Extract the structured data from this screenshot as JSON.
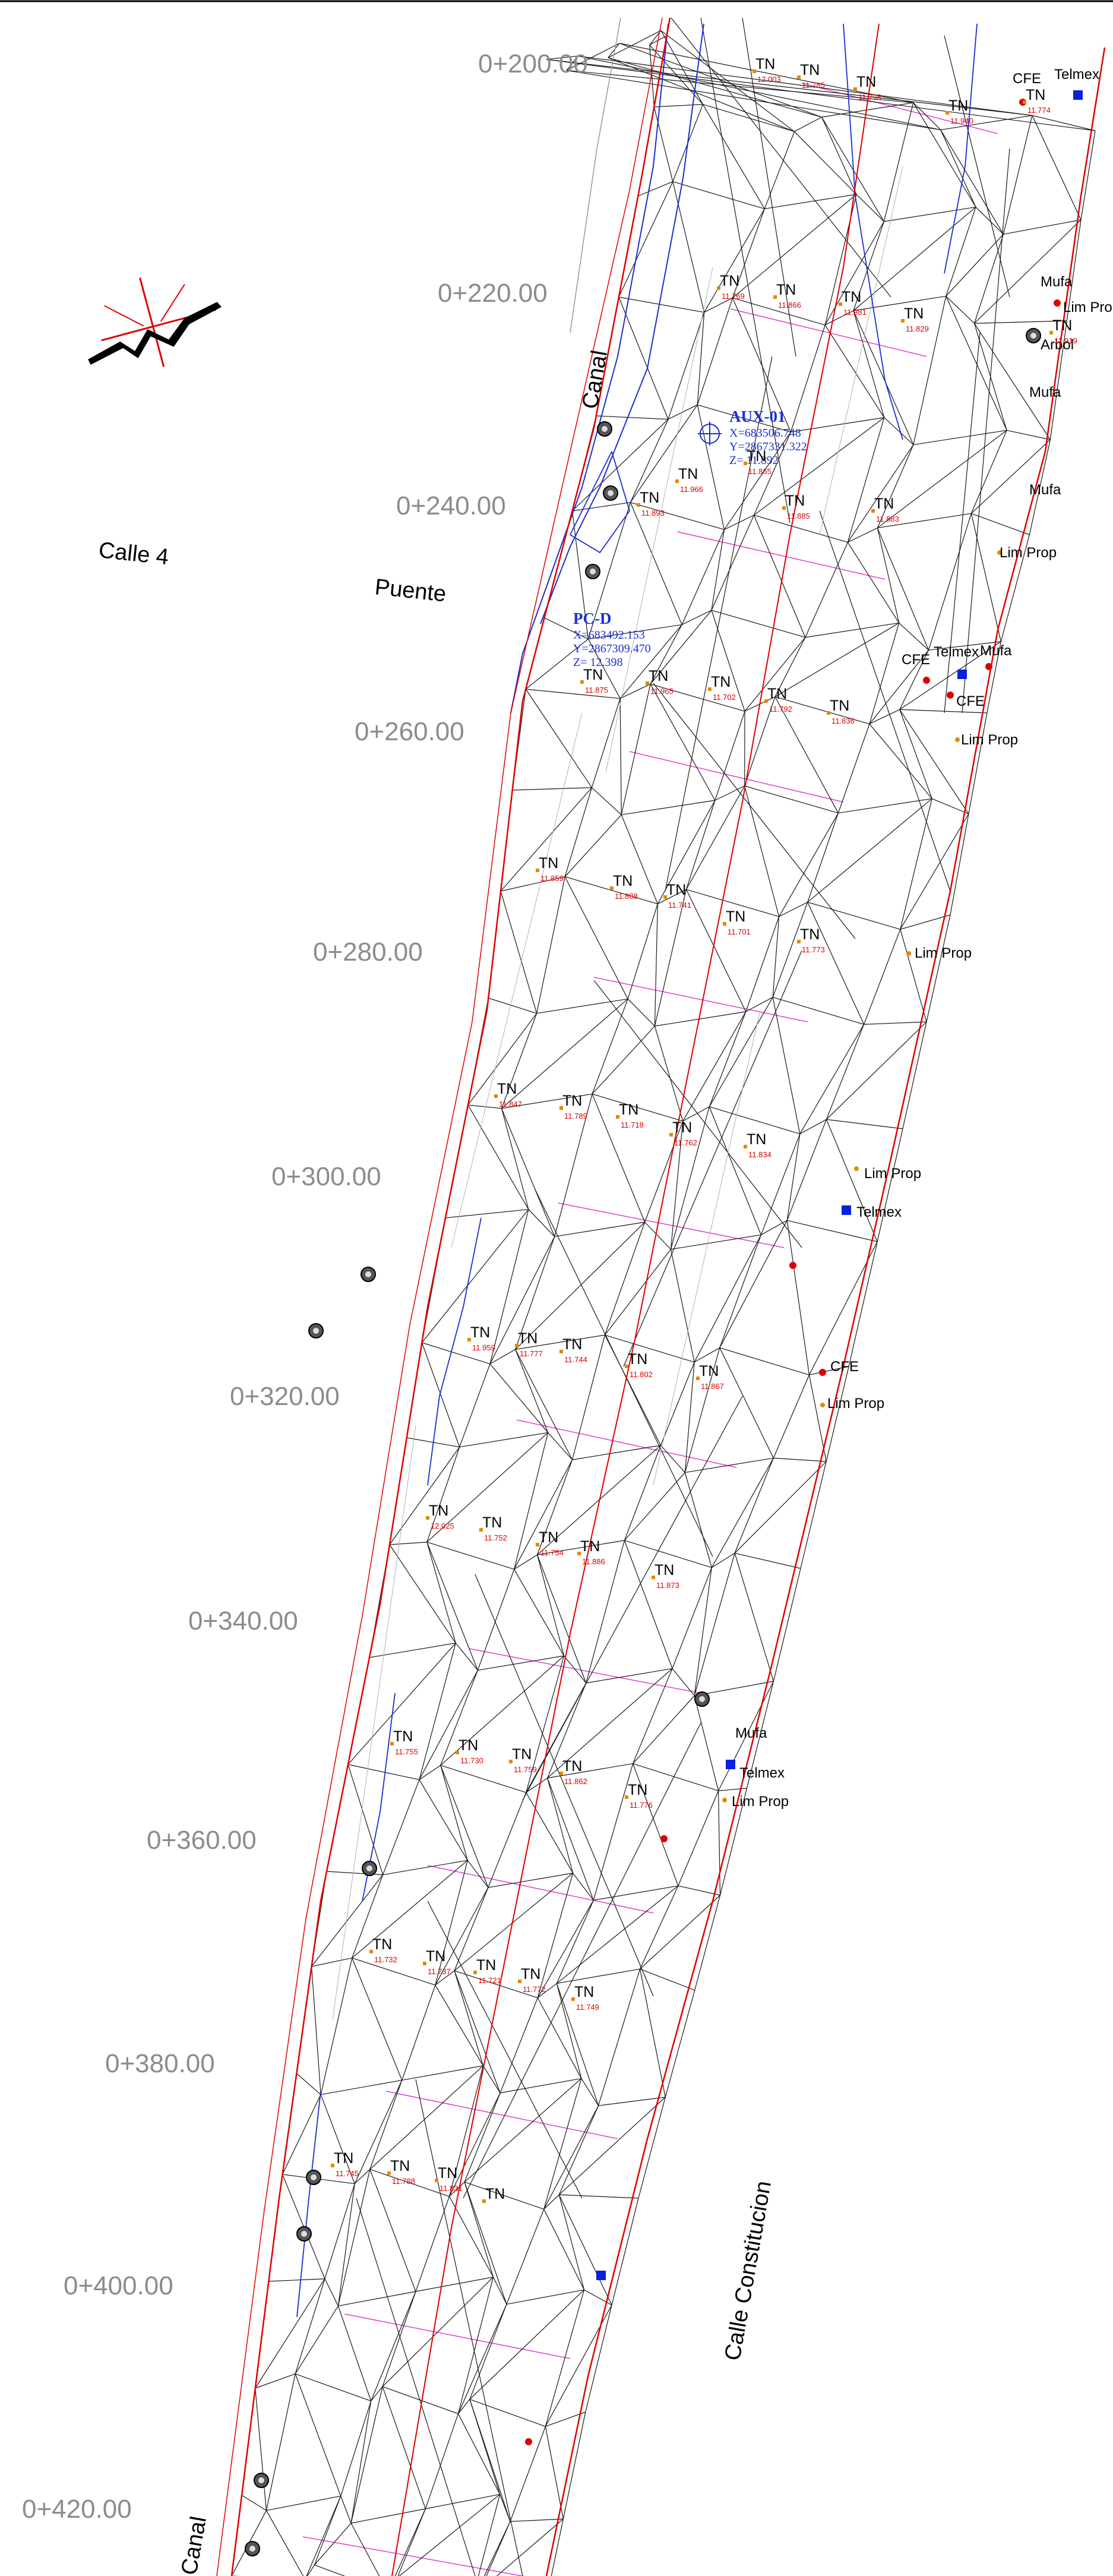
{
  "stations": [
    {
      "label": "0+200.00"
    },
    {
      "label": "0+220.00"
    },
    {
      "label": "0+240.00"
    },
    {
      "label": "0+260.00"
    },
    {
      "label": "0+280.00"
    },
    {
      "label": "0+300.00"
    },
    {
      "label": "0+320.00"
    },
    {
      "label": "0+340.00"
    },
    {
      "label": "0+360.00"
    },
    {
      "label": "0+380.00"
    },
    {
      "label": "0+400.00"
    },
    {
      "label": "0+420.00"
    }
  ],
  "streets": {
    "canal": "Canal",
    "calle4": "Calle 4",
    "puente": "Puente",
    "constitucion": "Calle Constitucion",
    "canal_bottom": "Canal"
  },
  "control_points": [
    {
      "name": "AUX-01",
      "x": "X=683506.748",
      "y": "Y=2867331.322",
      "z": "Z= 11.892"
    },
    {
      "name": "PC-D",
      "x": "X=683492.153",
      "y": "Y=2867309.470",
      "z": "Z= 12.398"
    }
  ],
  "features": {
    "cfe": "CFE",
    "telmex": "Telmex",
    "mufa": "Mufa",
    "lim_prop": "Lim Prop",
    "arbol": "Arbol",
    "tn": "TN"
  },
  "colors": {
    "triangulation": "#1a1a1a",
    "breakline_blue": "#1a2fd1",
    "boundary_red": "#e00000",
    "centerline_red": "#e00000",
    "section_magenta": "#e040c8",
    "station_gray": "#8c8c8c",
    "utility_blue": "#0a20e0"
  },
  "tn_points": [
    {
      "elev": "12.003"
    },
    {
      "elev": "11.785"
    },
    {
      "elev": "11.798"
    },
    {
      "elev": "11.940"
    },
    {
      "elev": "11.774"
    },
    {
      "elev": "11.769"
    },
    {
      "elev": "11.866"
    },
    {
      "elev": "11.981"
    },
    {
      "elev": "11.829"
    },
    {
      "elev": "11.919"
    },
    {
      "elev": "11.893"
    },
    {
      "elev": "11.966"
    },
    {
      "elev": "11.865"
    },
    {
      "elev": "11.885"
    },
    {
      "elev": "11.883"
    },
    {
      "elev": "11.875"
    },
    {
      "elev": "11.965"
    },
    {
      "elev": "11.702"
    },
    {
      "elev": "11.792"
    },
    {
      "elev": "11.836"
    },
    {
      "elev": "11.859"
    },
    {
      "elev": "11.888"
    },
    {
      "elev": "11.741"
    },
    {
      "elev": "11.701"
    },
    {
      "elev": "11.773"
    },
    {
      "elev": "11.847"
    },
    {
      "elev": "11.789"
    },
    {
      "elev": "11.718"
    },
    {
      "elev": "11.762"
    },
    {
      "elev": "11.834"
    },
    {
      "elev": "11.959"
    },
    {
      "elev": "11.777"
    },
    {
      "elev": "11.744"
    },
    {
      "elev": "11.802"
    },
    {
      "elev": "11.867"
    },
    {
      "elev": "12.025"
    },
    {
      "elev": "11.752"
    },
    {
      "elev": "11.754"
    },
    {
      "elev": "11.886"
    },
    {
      "elev": "11.873"
    },
    {
      "elev": "11.755"
    },
    {
      "elev": "11.730"
    },
    {
      "elev": "11.759"
    },
    {
      "elev": "11.862"
    },
    {
      "elev": "11.776"
    },
    {
      "elev": "11.732"
    },
    {
      "elev": "11.737"
    },
    {
      "elev": "11.721"
    },
    {
      "elev": "11.772"
    },
    {
      "elev": "11.749"
    },
    {
      "elev": "11.745"
    },
    {
      "elev": "11.788"
    },
    {
      "elev": "11.831"
    }
  ]
}
